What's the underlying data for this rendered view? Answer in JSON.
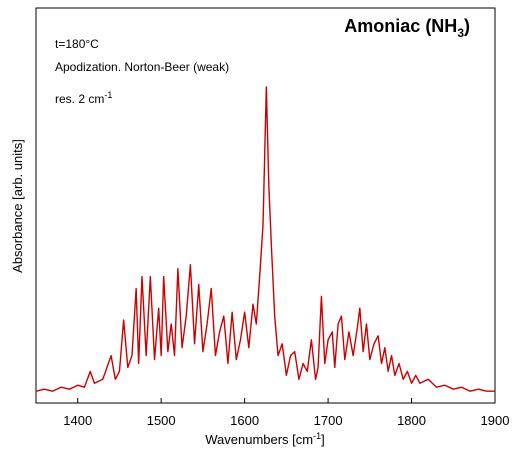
{
  "chart_data": {
    "type": "line",
    "title": {
      "text": "Amoniac (NH",
      "sub": "3",
      "tail": ")"
    },
    "annotations": [
      {
        "text": "t=180°C"
      },
      {
        "text": "Apodization. Norton-Beer (weak)"
      },
      {
        "text": "res. 2 cm",
        "sup": "-1"
      }
    ],
    "xlabel": {
      "text": "Wavenumbers [cm",
      "sup": "-1",
      "tail": "]"
    },
    "ylabel": {
      "text": "Absorbance [arb. units]"
    },
    "color": "#cc0000",
    "xlim": [
      1350,
      1900
    ],
    "xticks": [
      1400,
      1500,
      1600,
      1700,
      1800,
      1900
    ],
    "ylim": [
      0,
      1
    ],
    "x": [
      1350,
      1360,
      1370,
      1380,
      1390,
      1400,
      1408,
      1415,
      1420,
      1430,
      1440,
      1445,
      1450,
      1455,
      1460,
      1465,
      1470,
      1473,
      1477,
      1482,
      1487,
      1492,
      1497,
      1500,
      1503,
      1508,
      1512,
      1516,
      1520,
      1525,
      1530,
      1535,
      1540,
      1545,
      1550,
      1555,
      1560,
      1565,
      1570,
      1575,
      1580,
      1585,
      1590,
      1595,
      1600,
      1605,
      1610,
      1614,
      1618,
      1622,
      1626,
      1629,
      1632,
      1636,
      1640,
      1645,
      1650,
      1655,
      1660,
      1665,
      1670,
      1675,
      1680,
      1685,
      1688,
      1692,
      1696,
      1700,
      1705,
      1708,
      1712,
      1716,
      1720,
      1725,
      1730,
      1735,
      1738,
      1742,
      1746,
      1750,
      1755,
      1760,
      1764,
      1768,
      1772,
      1776,
      1780,
      1785,
      1790,
      1795,
      1800,
      1805,
      1810,
      1820,
      1830,
      1840,
      1850,
      1860,
      1870,
      1880,
      1890,
      1900
    ],
    "values": [
      0.03,
      0.035,
      0.03,
      0.04,
      0.035,
      0.045,
      0.04,
      0.08,
      0.05,
      0.06,
      0.12,
      0.06,
      0.08,
      0.21,
      0.09,
      0.12,
      0.29,
      0.1,
      0.32,
      0.12,
      0.32,
      0.11,
      0.24,
      0.12,
      0.32,
      0.13,
      0.2,
      0.12,
      0.34,
      0.14,
      0.22,
      0.35,
      0.15,
      0.3,
      0.13,
      0.2,
      0.29,
      0.12,
      0.18,
      0.22,
      0.1,
      0.23,
      0.11,
      0.16,
      0.23,
      0.14,
      0.25,
      0.2,
      0.32,
      0.45,
      0.8,
      0.55,
      0.4,
      0.22,
      0.12,
      0.15,
      0.07,
      0.12,
      0.13,
      0.06,
      0.1,
      0.08,
      0.16,
      0.06,
      0.09,
      0.27,
      0.1,
      0.16,
      0.18,
      0.09,
      0.2,
      0.22,
      0.11,
      0.18,
      0.12,
      0.19,
      0.24,
      0.13,
      0.2,
      0.11,
      0.15,
      0.17,
      0.1,
      0.14,
      0.08,
      0.12,
      0.07,
      0.1,
      0.06,
      0.08,
      0.05,
      0.07,
      0.05,
      0.06,
      0.04,
      0.045,
      0.035,
      0.04,
      0.03,
      0.035,
      0.03,
      0.03
    ]
  }
}
